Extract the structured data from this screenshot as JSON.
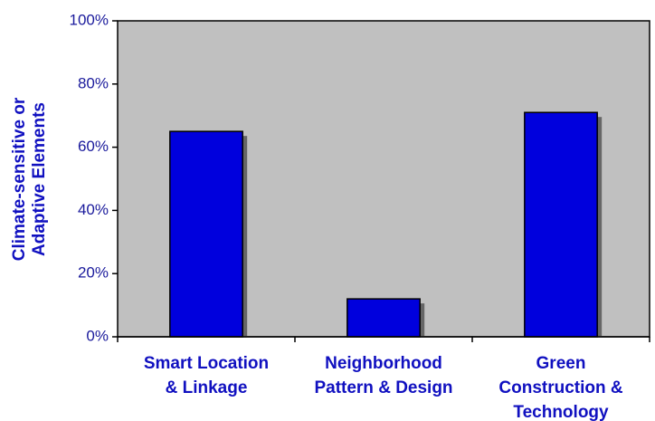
{
  "chart_data": {
    "type": "bar",
    "y_label": [
      "Climate-sensitive or",
      "Adaptive Elements"
    ],
    "categories": [
      [
        "Smart Location",
        "& Linkage"
      ],
      [
        "Neighborhood",
        "Pattern & Design"
      ],
      [
        "Green",
        "Construction &",
        "Technology"
      ]
    ],
    "values": [
      65,
      12,
      71
    ],
    "color": "#0000dd",
    "ylim": [
      0,
      100
    ],
    "yticks": [
      {
        "value": 0,
        "label": "0%"
      },
      {
        "value": 20,
        "label": "20%"
      },
      {
        "value": 40,
        "label": "40%"
      },
      {
        "value": 60,
        "label": "60%"
      },
      {
        "value": 80,
        "label": "80%"
      },
      {
        "value": 100,
        "label": "100%"
      }
    ],
    "plot_background": "#c0c0c0"
  }
}
